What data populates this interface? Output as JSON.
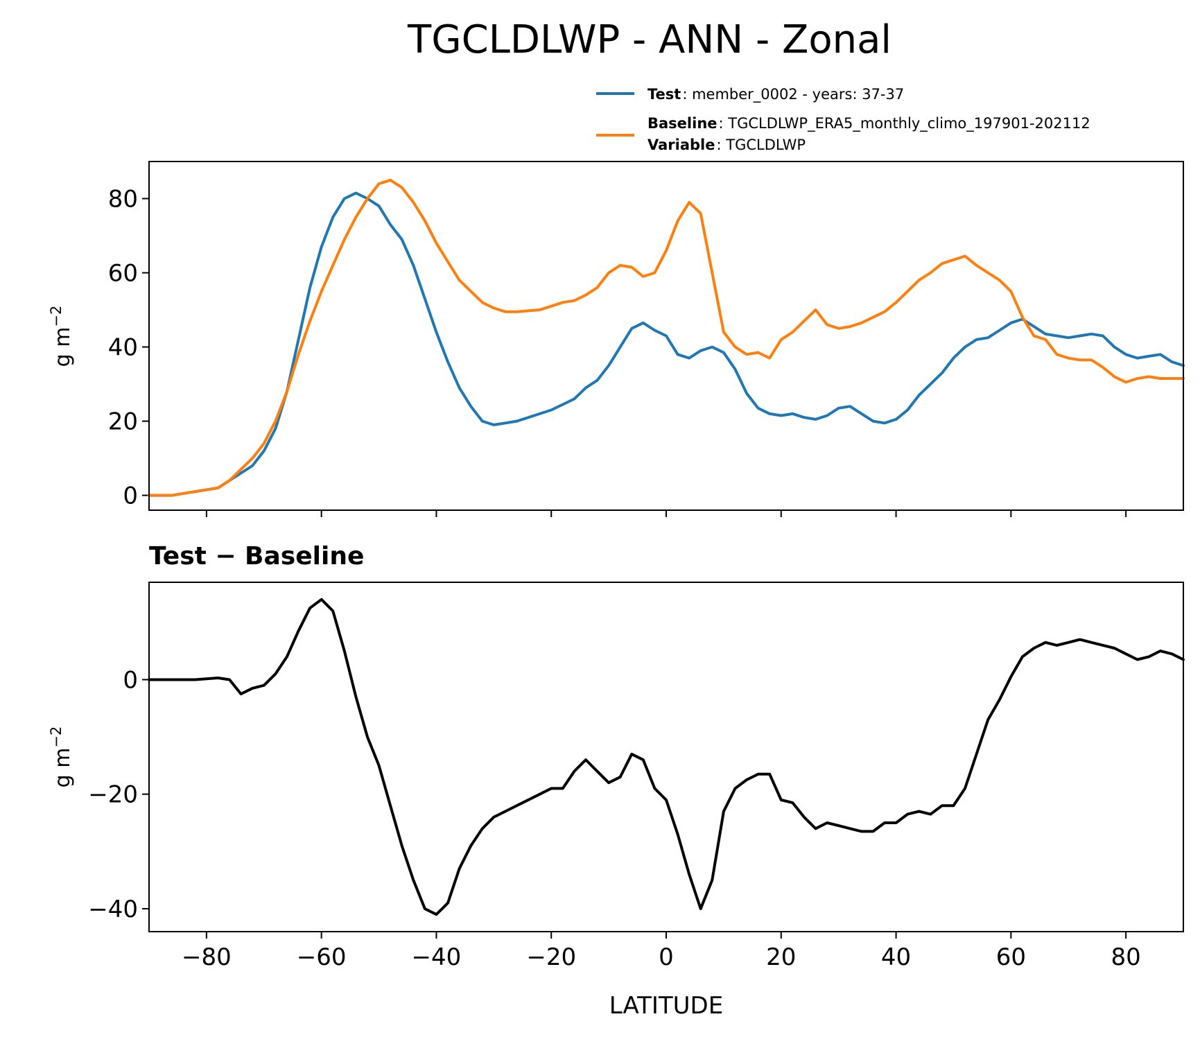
{
  "chart_data": [
    {
      "type": "line",
      "title": "TGCLDLWP - ANN - Zonal",
      "xlabel": "LATITUDE",
      "ylabel": "g m",
      "ylabel_exp": "−2",
      "xlim": [
        -90,
        90
      ],
      "ylim": [
        -4,
        90
      ],
      "xticks": [
        -80,
        -60,
        -40,
        -20,
        0,
        20,
        40,
        60,
        80
      ],
      "yticks": [
        0,
        20,
        40,
        60,
        80
      ],
      "legend": {
        "test_name": "Test",
        "test_text": ": member_0002 - years: 37-37",
        "baseline_name": "Baseline",
        "baseline_text": ": TGCLDLWP_ERA5_monthly_climo_197901-202112",
        "variable_name": "Variable",
        "variable_text": ": TGCLDLWP"
      },
      "series": [
        {
          "name": "Test",
          "color": "#1f77b4",
          "x": [
            -90,
            -86,
            -82,
            -78,
            -76,
            -74,
            -72,
            -70,
            -68,
            -66,
            -64,
            -62,
            -60,
            -58,
            -56,
            -54,
            -52,
            -50,
            -48,
            -46,
            -44,
            -42,
            -40,
            -38,
            -36,
            -34,
            -32,
            -30,
            -28,
            -26,
            -22,
            -20,
            -18,
            -16,
            -14,
            -12,
            -10,
            -8,
            -6,
            -4,
            -2,
            0,
            2,
            4,
            6,
            8,
            10,
            12,
            14,
            16,
            18,
            20,
            22,
            24,
            26,
            28,
            30,
            32,
            34,
            36,
            38,
            40,
            42,
            44,
            46,
            48,
            50,
            52,
            54,
            56,
            58,
            60,
            62,
            64,
            66,
            68,
            70,
            72,
            74,
            76,
            78,
            80,
            82,
            84,
            86,
            88,
            90
          ],
          "values": [
            0,
            0,
            1,
            2,
            4,
            6,
            8,
            12,
            18,
            28,
            42,
            56,
            67,
            75,
            80,
            81.5,
            80,
            78,
            73,
            69,
            62,
            53,
            44,
            36,
            29,
            24,
            20,
            19,
            19.5,
            20,
            22,
            23,
            24.5,
            26,
            29,
            31,
            35,
            40,
            45,
            46.5,
            44.5,
            43,
            38,
            37,
            39,
            40,
            38.5,
            34,
            27.5,
            23.5,
            22,
            21.5,
            22,
            21,
            20.5,
            21.5,
            23.5,
            24,
            22,
            20,
            19.5,
            20.5,
            23,
            27,
            30,
            33,
            37,
            40,
            42,
            42.5,
            44.5,
            46.5,
            47.5,
            45.5,
            43.5,
            43,
            42.5,
            43,
            43.5,
            43,
            40,
            38,
            37,
            37.5,
            38,
            36,
            35
          ]
        },
        {
          "name": "Baseline",
          "color": "#ff7f0e",
          "x": [
            -90,
            -86,
            -82,
            -78,
            -76,
            -74,
            -72,
            -70,
            -68,
            -66,
            -64,
            -62,
            -60,
            -58,
            -56,
            -54,
            -52,
            -50,
            -48,
            -46,
            -44,
            -42,
            -40,
            -38,
            -36,
            -34,
            -32,
            -30,
            -28,
            -26,
            -22,
            -20,
            -18,
            -16,
            -14,
            -12,
            -10,
            -8,
            -6,
            -4,
            -2,
            0,
            2,
            4,
            6,
            8,
            10,
            12,
            14,
            16,
            18,
            20,
            22,
            24,
            26,
            28,
            30,
            32,
            34,
            36,
            38,
            40,
            42,
            44,
            46,
            48,
            50,
            52,
            54,
            56,
            58,
            60,
            62,
            64,
            66,
            68,
            70,
            72,
            74,
            76,
            78,
            80,
            82,
            84,
            86,
            88,
            90
          ],
          "values": [
            0,
            0,
            1,
            2,
            4,
            7,
            10,
            14,
            20,
            28,
            38,
            47,
            55,
            62,
            69,
            75,
            80,
            84,
            85,
            83,
            79,
            74,
            68,
            63,
            58,
            55,
            52,
            50.5,
            49.5,
            49.5,
            50,
            51,
            52,
            52.5,
            54,
            56,
            60,
            62,
            61.5,
            59,
            60,
            66,
            74,
            79,
            76,
            60,
            44,
            40,
            38,
            38.5,
            37,
            42,
            44,
            47,
            50,
            46,
            45,
            45.5,
            46.5,
            48,
            49.5,
            52,
            55,
            58,
            60,
            62.5,
            63.5,
            64.5,
            62,
            60,
            58,
            55,
            48,
            43,
            42,
            38,
            37,
            36.5,
            36.5,
            34.5,
            32,
            30.5,
            31.5,
            32,
            31.5,
            31.5,
            31.5
          ]
        }
      ]
    },
    {
      "type": "line",
      "title": "Test − Baseline",
      "xlabel": "LATITUDE",
      "ylabel": "g m",
      "ylabel_exp": "−2",
      "xlim": [
        -90,
        90
      ],
      "ylim": [
        -44,
        17
      ],
      "xticks": [
        -80,
        -60,
        -40,
        -20,
        0,
        20,
        40,
        60,
        80
      ],
      "yticks": [
        0,
        -20,
        -40
      ],
      "series": [
        {
          "name": "Test − Baseline",
          "color": "#000000",
          "x": [
            -90,
            -86,
            -82,
            -78,
            -76,
            -74,
            -72,
            -70,
            -68,
            -66,
            -64,
            -62,
            -60,
            -58,
            -56,
            -54,
            -52,
            -50,
            -48,
            -46,
            -44,
            -42,
            -40,
            -38,
            -36,
            -34,
            -32,
            -30,
            -28,
            -26,
            -22,
            -20,
            -18,
            -16,
            -14,
            -12,
            -10,
            -8,
            -6,
            -4,
            -2,
            0,
            2,
            4,
            6,
            8,
            10,
            12,
            14,
            16,
            18,
            20,
            22,
            24,
            26,
            28,
            30,
            32,
            34,
            36,
            38,
            40,
            42,
            44,
            46,
            48,
            50,
            52,
            54,
            56,
            58,
            60,
            62,
            64,
            66,
            68,
            70,
            72,
            74,
            76,
            78,
            80,
            82,
            84,
            86,
            88,
            90
          ],
          "values": [
            0,
            0,
            0,
            0.3,
            0,
            -2.5,
            -1.5,
            -1,
            1,
            4,
            8.5,
            12.5,
            14,
            12,
            5,
            -3,
            -10,
            -15,
            -22,
            -29,
            -35,
            -40,
            -41,
            -39,
            -33,
            -29,
            -26,
            -24,
            -23,
            -22,
            -20,
            -19,
            -19,
            -16,
            -14,
            -16,
            -18,
            -17,
            -13,
            -14,
            -19,
            -21,
            -27,
            -34,
            -40,
            -35,
            -23,
            -19,
            -17.5,
            -16.5,
            -16.5,
            -21,
            -21.5,
            -24,
            -26,
            -25,
            -25.5,
            -26,
            -26.5,
            -26.5,
            -25,
            -25,
            -23.5,
            -23,
            -23.5,
            -22,
            -22,
            -19,
            -13,
            -7,
            -3.5,
            0.5,
            4,
            5.5,
            6.5,
            6,
            6.5,
            7,
            6.5,
            6,
            5.5,
            4.5,
            3.5,
            4,
            5,
            4.5,
            3.5
          ]
        }
      ]
    }
  ]
}
